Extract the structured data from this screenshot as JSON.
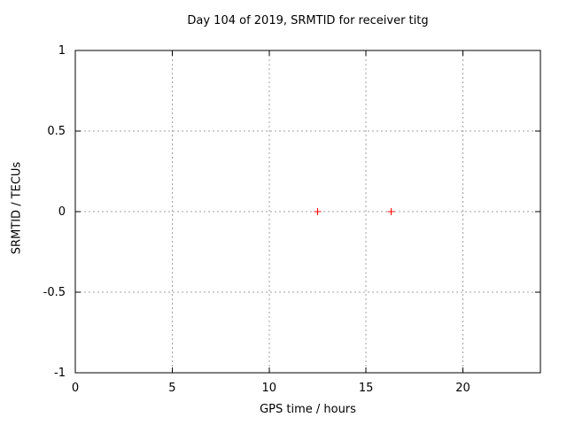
{
  "chart_data": {
    "type": "scatter",
    "title": "Day 104 of 2019, SRMTID for receiver titg",
    "xlabel": "GPS time / hours",
    "ylabel": "SRMTID / TECUs",
    "xlim": [
      0,
      24
    ],
    "ylim": [
      -1,
      1
    ],
    "xticks": [
      0,
      5,
      10,
      15,
      20
    ],
    "yticks": [
      1,
      0.5,
      0,
      -0.5,
      -1
    ],
    "grid": true,
    "grid_style": "dashed",
    "legend": "none",
    "series": [
      {
        "name": "SRMTID",
        "marker": "plus",
        "color": "#ff0000",
        "points": [
          {
            "x": 12.5,
            "y": 0.0
          },
          {
            "x": 16.3,
            "y": 0.0
          }
        ]
      }
    ],
    "colors": {
      "background": "#ffffff",
      "axis": "#000000",
      "grid": "#a0a0a0",
      "text": "#000000",
      "marker": "#ff0000"
    }
  }
}
